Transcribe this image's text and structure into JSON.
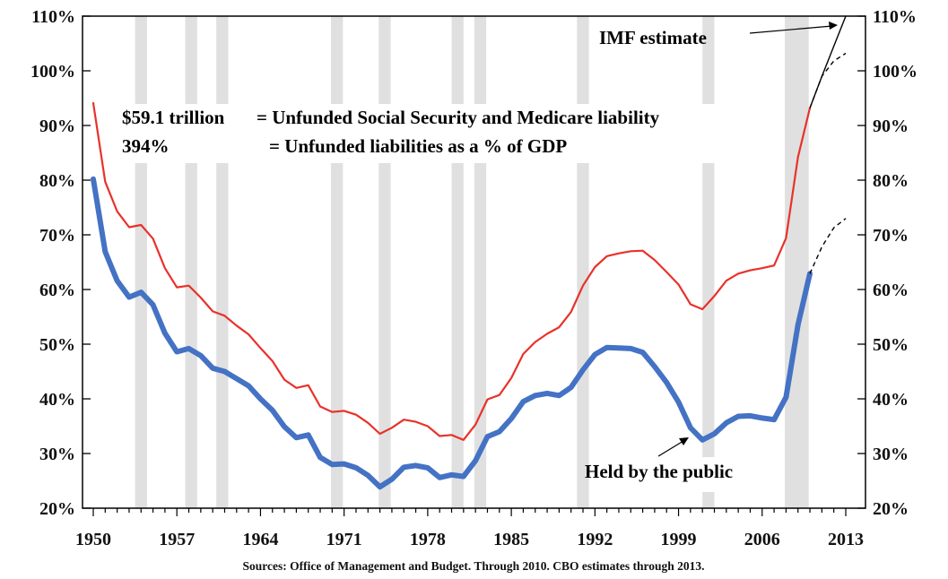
{
  "chart_data": {
    "type": "line",
    "xlim": [
      1950,
      2013
    ],
    "ylim": [
      20,
      110
    ],
    "y_ticks": [
      "20%",
      "30%",
      "40%",
      "50%",
      "60%",
      "70%",
      "80%",
      "90%",
      "100%",
      "110%"
    ],
    "y_tick_values": [
      20,
      30,
      40,
      50,
      60,
      70,
      80,
      90,
      100,
      110
    ],
    "x_ticks": [
      "1950",
      "1957",
      "1964",
      "1971",
      "1978",
      "1985",
      "1992",
      "1999",
      "2006",
      "2013"
    ],
    "x_tick_values": [
      1950,
      1957,
      1964,
      1971,
      1978,
      1985,
      1992,
      1999,
      2006,
      2013
    ],
    "recessions": [
      [
        1953.5,
        1954.5
      ],
      [
        1957.7,
        1958.7
      ],
      [
        1960.3,
        1961.3
      ],
      [
        1969.9,
        1970.9
      ],
      [
        1973.9,
        1974.9
      ],
      [
        1980.0,
        1981.0
      ],
      [
        1981.9,
        1982.9
      ],
      [
        1990.5,
        1991.5
      ],
      [
        2001.0,
        2002.0
      ],
      [
        2007.9,
        2009.9
      ]
    ],
    "recession_color": "#e0e0e0",
    "series": [
      {
        "color": "#e8322a",
        "values": [
          [
            1950,
            94.1
          ],
          [
            1951,
            79.7
          ],
          [
            1952,
            74.3
          ],
          [
            1953,
            71.4
          ],
          [
            1954,
            71.8
          ],
          [
            1955,
            69.3
          ],
          [
            1956,
            63.9
          ],
          [
            1957,
            60.4
          ],
          [
            1958,
            60.7
          ],
          [
            1959,
            58.5
          ],
          [
            1960,
            56.0
          ],
          [
            1961,
            55.2
          ],
          [
            1962,
            53.4
          ],
          [
            1963,
            51.8
          ],
          [
            1964,
            49.3
          ],
          [
            1965,
            46.9
          ],
          [
            1966,
            43.5
          ],
          [
            1967,
            42.0
          ],
          [
            1968,
            42.5
          ],
          [
            1969,
            38.6
          ],
          [
            1970,
            37.6
          ],
          [
            1971,
            37.8
          ],
          [
            1972,
            37.1
          ],
          [
            1973,
            35.6
          ],
          [
            1974,
            33.6
          ],
          [
            1975,
            34.7
          ],
          [
            1976,
            36.2
          ],
          [
            1977,
            35.8
          ],
          [
            1978,
            35.0
          ],
          [
            1979,
            33.2
          ],
          [
            1980,
            33.4
          ],
          [
            1981,
            32.5
          ],
          [
            1982,
            35.3
          ],
          [
            1983,
            39.9
          ],
          [
            1984,
            40.7
          ],
          [
            1985,
            43.8
          ],
          [
            1986,
            48.2
          ],
          [
            1987,
            50.4
          ],
          [
            1988,
            51.9
          ],
          [
            1989,
            53.1
          ],
          [
            1990,
            55.9
          ],
          [
            1991,
            60.7
          ],
          [
            1992,
            64.1
          ],
          [
            1993,
            66.1
          ],
          [
            1994,
            66.6
          ],
          [
            1995,
            67.0
          ],
          [
            1996,
            67.1
          ],
          [
            1997,
            65.4
          ],
          [
            1998,
            63.2
          ],
          [
            1999,
            60.9
          ],
          [
            2000,
            57.3
          ],
          [
            2001,
            56.4
          ],
          [
            2002,
            58.8
          ],
          [
            2003,
            61.6
          ],
          [
            2004,
            62.9
          ],
          [
            2005,
            63.5
          ],
          [
            2006,
            63.9
          ],
          [
            2007,
            64.4
          ],
          [
            2008,
            69.4
          ],
          [
            2009,
            84.2
          ],
          [
            2010,
            93.2
          ]
        ]
      },
      {
        "color": "#4472c4",
        "values": [
          [
            1950,
            80.2
          ],
          [
            1951,
            66.9
          ],
          [
            1952,
            61.6
          ],
          [
            1953,
            58.6
          ],
          [
            1954,
            59.5
          ],
          [
            1955,
            57.2
          ],
          [
            1956,
            52.0
          ],
          [
            1957,
            48.6
          ],
          [
            1958,
            49.2
          ],
          [
            1959,
            47.9
          ],
          [
            1960,
            45.6
          ],
          [
            1961,
            45.0
          ],
          [
            1962,
            43.7
          ],
          [
            1963,
            42.4
          ],
          [
            1964,
            40.0
          ],
          [
            1965,
            37.9
          ],
          [
            1966,
            34.9
          ],
          [
            1967,
            32.9
          ],
          [
            1968,
            33.4
          ],
          [
            1969,
            29.3
          ],
          [
            1970,
            28.0
          ],
          [
            1971,
            28.1
          ],
          [
            1972,
            27.4
          ],
          [
            1973,
            26.0
          ],
          [
            1974,
            23.9
          ],
          [
            1975,
            25.3
          ],
          [
            1976,
            27.5
          ],
          [
            1977,
            27.8
          ],
          [
            1978,
            27.4
          ],
          [
            1979,
            25.6
          ],
          [
            1980,
            26.1
          ],
          [
            1981,
            25.8
          ],
          [
            1982,
            28.7
          ],
          [
            1983,
            33.1
          ],
          [
            1984,
            34.0
          ],
          [
            1985,
            36.4
          ],
          [
            1986,
            39.5
          ],
          [
            1987,
            40.6
          ],
          [
            1988,
            41.0
          ],
          [
            1989,
            40.6
          ],
          [
            1990,
            42.1
          ],
          [
            1991,
            45.3
          ],
          [
            1992,
            48.1
          ],
          [
            1993,
            49.4
          ],
          [
            1994,
            49.3
          ],
          [
            1995,
            49.2
          ],
          [
            1996,
            48.5
          ],
          [
            1997,
            45.9
          ],
          [
            1998,
            43.0
          ],
          [
            1999,
            39.4
          ],
          [
            2000,
            34.7
          ],
          [
            2001,
            32.5
          ],
          [
            2002,
            33.6
          ],
          [
            2003,
            35.6
          ],
          [
            2004,
            36.8
          ],
          [
            2005,
            36.9
          ],
          [
            2006,
            36.5
          ],
          [
            2007,
            36.2
          ],
          [
            2008,
            40.3
          ],
          [
            2009,
            53.5
          ],
          [
            2010,
            62.9
          ]
        ]
      }
    ],
    "projections": [
      {
        "style": "solid",
        "values": [
          [
            2010,
            93.2
          ],
          [
            2011,
            99.0
          ],
          [
            2012,
            104.5
          ],
          [
            2013,
            110.0
          ]
        ]
      },
      {
        "style": "dashed",
        "values": [
          [
            2010,
            93.2
          ],
          [
            2011,
            99.0
          ],
          [
            2012,
            101.8
          ],
          [
            2013,
            103.2
          ]
        ]
      },
      {
        "style": "dashed",
        "values": [
          [
            2010,
            62.9
          ],
          [
            2011,
            67.8
          ],
          [
            2012,
            71.3
          ],
          [
            2013,
            73.0
          ]
        ]
      }
    ]
  },
  "annotations": {
    "imf": "IMF estimate",
    "public": "Held by the public",
    "line1_amount": "$59.1 trillion",
    "line1_text": "= Unfunded Social Security and Medicare liability",
    "line2_amount": "394%",
    "line2_text": "= Unfunded liabilities as a % of GDP"
  },
  "source_note": "Sources:  Office of Management and Budget.  Through 2010. CBO estimates through 2013."
}
